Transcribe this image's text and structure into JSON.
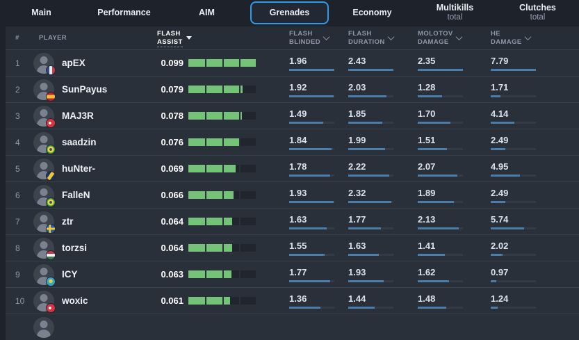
{
  "tabs": [
    {
      "label": "Main"
    },
    {
      "label": "Performance"
    },
    {
      "label": "AIM"
    },
    {
      "label": "Grenades",
      "active": true
    },
    {
      "label": "Economy"
    },
    {
      "label": "Multikills",
      "sub": "total"
    },
    {
      "label": "Clutches",
      "sub": "total"
    }
  ],
  "table": {
    "headers": {
      "rank": "#",
      "player": "PLAYER",
      "assist_line1": "FLASH",
      "assist_line2": "ASSIST",
      "cols": [
        {
          "line1": "FLASH",
          "line2": "BLINDED"
        },
        {
          "line1": "FLASH",
          "line2": "DURATION"
        },
        {
          "line1": "MOLOTOV",
          "line2": "DAMAGE"
        },
        {
          "line1": "HE",
          "line2": "DAMAGE"
        }
      ]
    },
    "maxes": {
      "assist": 0.099,
      "blinded": 1.96,
      "duration": 2.43,
      "molotov": 2.35,
      "he": 7.79
    },
    "rows": [
      {
        "rank": "1",
        "player": "apEX",
        "country": "france",
        "assist": "0.099",
        "blinded": "1.96",
        "duration": "2.43",
        "molotov": "2.35",
        "he": "7.79"
      },
      {
        "rank": "2",
        "player": "SunPayus",
        "country": "spain",
        "assist": "0.079",
        "blinded": "1.92",
        "duration": "2.03",
        "molotov": "1.28",
        "he": "1.71"
      },
      {
        "rank": "3",
        "player": "MAJ3R",
        "country": "turkey",
        "assist": "0.078",
        "blinded": "1.49",
        "duration": "1.85",
        "molotov": "1.70",
        "he": "4.14"
      },
      {
        "rank": "4",
        "player": "saadzin",
        "country": "brazil",
        "assist": "0.076",
        "blinded": "1.84",
        "duration": "1.99",
        "molotov": "1.51",
        "he": "2.49"
      },
      {
        "rank": "5",
        "player": "huNter-",
        "country": "bosnia",
        "assist": "0.069",
        "blinded": "1.78",
        "duration": "2.22",
        "molotov": "2.07",
        "he": "4.95"
      },
      {
        "rank": "6",
        "player": "FalleN",
        "country": "brazil",
        "assist": "0.066",
        "blinded": "1.93",
        "duration": "2.32",
        "molotov": "1.89",
        "he": "2.49"
      },
      {
        "rank": "7",
        "player": "ztr",
        "country": "sweden",
        "assist": "0.064",
        "blinded": "1.63",
        "duration": "1.77",
        "molotov": "2.13",
        "he": "5.74"
      },
      {
        "rank": "8",
        "player": "torzsi",
        "country": "hungary",
        "assist": "0.064",
        "blinded": "1.55",
        "duration": "1.63",
        "molotov": "1.41",
        "he": "2.02"
      },
      {
        "rank": "9",
        "player": "ICY",
        "country": "kazakhstan",
        "assist": "0.063",
        "blinded": "1.77",
        "duration": "1.93",
        "molotov": "1.62",
        "he": "0.97"
      },
      {
        "rank": "10",
        "player": "woxic",
        "country": "turkey",
        "assist": "0.061",
        "blinded": "1.36",
        "duration": "1.44",
        "molotov": "1.48",
        "he": "1.24"
      }
    ]
  },
  "colors": {
    "accent_blue": "#2f9ce8",
    "bar_green": "#74c378",
    "stat_bar_blue": "#4b7dab",
    "row_bg": "#2a303a",
    "page_bg": "#1d222b"
  }
}
